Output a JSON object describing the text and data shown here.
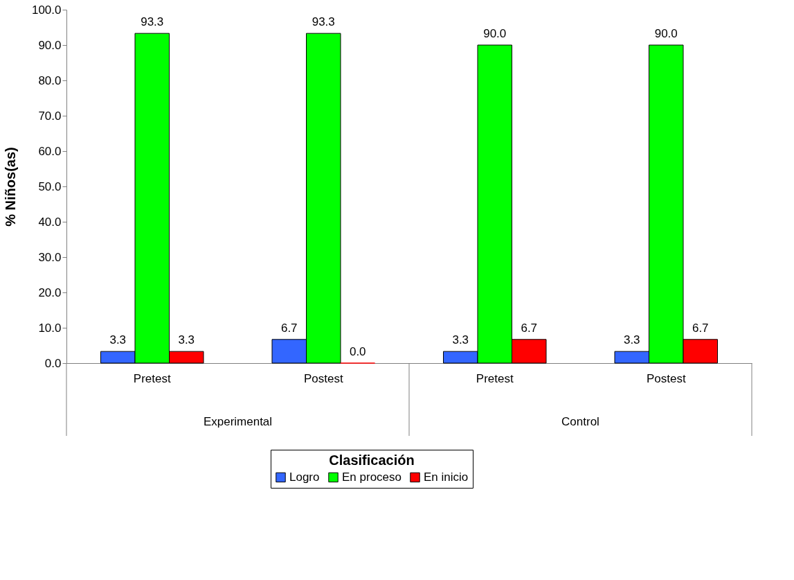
{
  "chart_data": {
    "type": "bar",
    "ylabel": "% Niños(as)",
    "legend_title": "Clasificación",
    "legend": "bottom",
    "grid": false,
    "categories": [
      "Pretest",
      "Postest",
      "Pretest",
      "Postest"
    ],
    "annotations": [
      "Experimental",
      "Control"
    ],
    "ylim": [
      0,
      100
    ],
    "yticks": [
      {
        "value": 0,
        "label": "0.0"
      },
      {
        "value": 10,
        "label": "10.0"
      },
      {
        "value": 20,
        "label": "20.0"
      },
      {
        "value": 30,
        "label": "30.0"
      },
      {
        "value": 40,
        "label": "40.0"
      },
      {
        "value": 50,
        "label": "50.0"
      },
      {
        "value": 60,
        "label": "60.0"
      },
      {
        "value": 70,
        "label": "70.0"
      },
      {
        "value": 80,
        "label": "80.0"
      },
      {
        "value": 90,
        "label": "90.0"
      },
      {
        "value": 100,
        "label": "100.0"
      }
    ],
    "series": [
      {
        "name": "Logro",
        "color": "#3366ff",
        "values": [
          3.3,
          6.7,
          3.3,
          3.3
        ],
        "value_labels": [
          "3.3",
          "6.7",
          "3.3",
          "3.3"
        ]
      },
      {
        "name": "En proceso",
        "color": "#00ff00",
        "values": [
          93.3,
          93.3,
          90.0,
          90.0
        ],
        "value_labels": [
          "93.3",
          "93.3",
          "90.0",
          "90.0"
        ]
      },
      {
        "name": "En inicio",
        "color": "#ff0000",
        "values": [
          3.3,
          0.0,
          6.7,
          6.7
        ],
        "value_labels": [
          "3.3",
          "0.0",
          "6.7",
          "6.7"
        ]
      }
    ]
  }
}
